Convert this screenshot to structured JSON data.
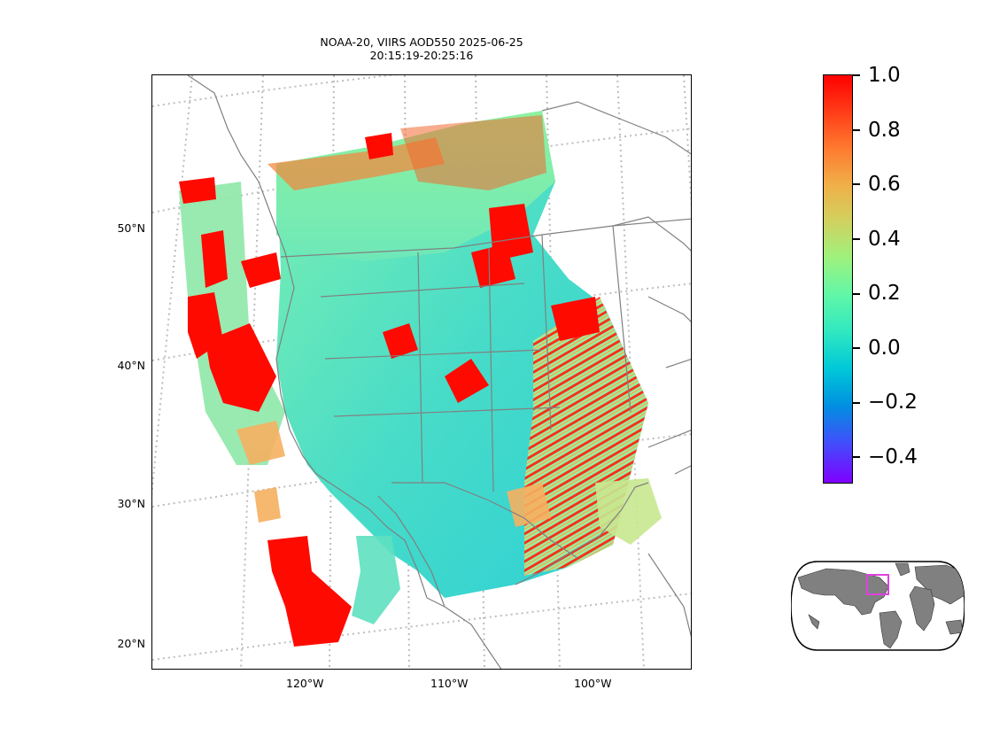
{
  "figure": {
    "title_line1": "NOAA-20, VIIRS AOD550 2025-06-25",
    "title_line2": "20:15:19-20:25:16"
  },
  "map": {
    "projection": "lambert-conformal",
    "gridline_style": "dotted-gray",
    "coastline_color": "#808080",
    "lat_labels": [
      "50°N",
      "40°N",
      "30°N",
      "20°N"
    ],
    "lon_labels": [
      "120°W",
      "110°W",
      "100°W"
    ],
    "data_variable": "AOD550",
    "data_colormap": "rainbow",
    "value_range": [
      -0.5,
      1.0
    ]
  },
  "colorbar": {
    "ticks": [
      "1.0",
      "0.8",
      "0.6",
      "0.4",
      "0.2",
      "0.0",
      "−0.2",
      "−0.4"
    ],
    "colormap": "rainbow",
    "vmin": -0.5,
    "vmax": 1.0
  },
  "inset": {
    "type": "world-locator-map",
    "land_color": "#808080",
    "highlight_color": "#e040e0"
  }
}
